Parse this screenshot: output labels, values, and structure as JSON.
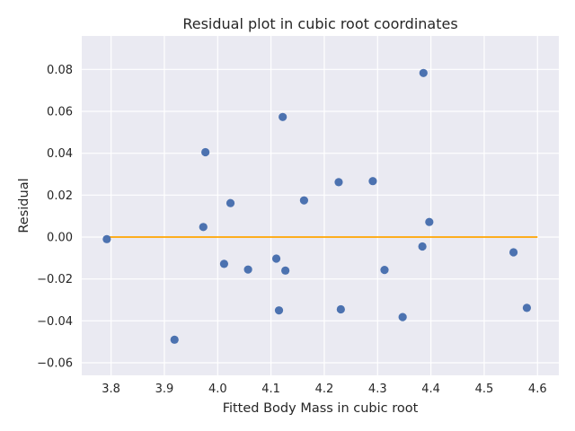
{
  "chart_data": {
    "type": "scatter",
    "title": "Residual plot in cubic root coordinates",
    "xlabel": "Fitted Body Mass in cubic root",
    "ylabel": "Residual",
    "xlim": [
      3.745,
      4.64
    ],
    "ylim": [
      -0.066,
      0.096
    ],
    "xticks": [
      3.8,
      3.9,
      4.0,
      4.1,
      4.2,
      4.3,
      4.4,
      4.5,
      4.6
    ],
    "xtick_labels": [
      "3.8",
      "3.9",
      "4.0",
      "4.1",
      "4.2",
      "4.3",
      "4.4",
      "4.5",
      "4.6"
    ],
    "yticks": [
      -0.06,
      -0.04,
      -0.02,
      0.0,
      0.02,
      0.04,
      0.06,
      0.08
    ],
    "ytick_labels": [
      "−0.06",
      "−0.04",
      "−0.02",
      "0.00",
      "0.02",
      "0.04",
      "0.06",
      "0.08"
    ],
    "grid": true,
    "colors": {
      "background": "#eaeaf2",
      "points": "#4c72b0",
      "reference_line": "#ffa500"
    },
    "reference_line": {
      "x": [
        3.79,
        4.6
      ],
      "y": [
        0.0,
        0.0
      ]
    },
    "points": [
      {
        "x": 3.792,
        "y": -0.001
      },
      {
        "x": 3.919,
        "y": -0.049
      },
      {
        "x": 3.973,
        "y": 0.0048
      },
      {
        "x": 3.977,
        "y": 0.0405
      },
      {
        "x": 4.012,
        "y": -0.0128
      },
      {
        "x": 4.024,
        "y": 0.0162
      },
      {
        "x": 4.057,
        "y": -0.0155
      },
      {
        "x": 4.11,
        "y": -0.0103
      },
      {
        "x": 4.115,
        "y": -0.035
      },
      {
        "x": 4.122,
        "y": 0.0573
      },
      {
        "x": 4.127,
        "y": -0.016
      },
      {
        "x": 4.162,
        "y": 0.0175
      },
      {
        "x": 4.227,
        "y": 0.0262
      },
      {
        "x": 4.231,
        "y": -0.0345
      },
      {
        "x": 4.291,
        "y": 0.0267
      },
      {
        "x": 4.313,
        "y": -0.0157
      },
      {
        "x": 4.347,
        "y": -0.0382
      },
      {
        "x": 4.384,
        "y": -0.0045
      },
      {
        "x": 4.386,
        "y": 0.0783
      },
      {
        "x": 4.397,
        "y": 0.0072
      },
      {
        "x": 4.555,
        "y": -0.0073
      },
      {
        "x": 4.58,
        "y": -0.0338
      }
    ]
  }
}
